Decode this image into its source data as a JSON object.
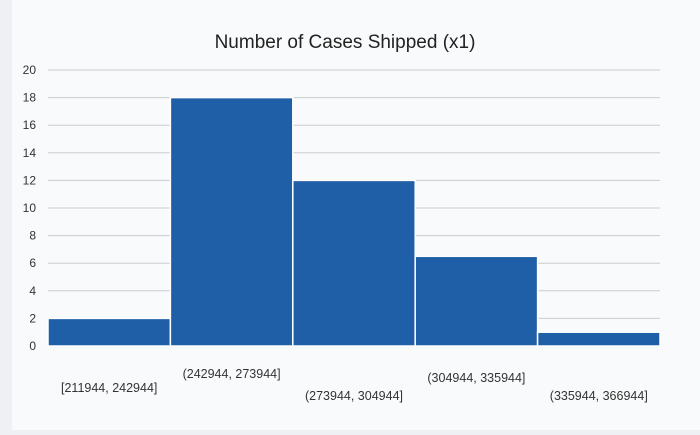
{
  "chart_data": {
    "type": "bar",
    "title": "Number of Cases Shipped (x1)",
    "categories": [
      "[211944, 242944]",
      "(242944, 273944]",
      "(273944, 304944]",
      "(304944, 335944]",
      "(335944, 366944]"
    ],
    "values": [
      2,
      18,
      12,
      6.5,
      1
    ],
    "ylim": [
      0,
      20
    ],
    "yticks": [
      0,
      2,
      4,
      6,
      8,
      10,
      12,
      14,
      16,
      18,
      20
    ],
    "grid": true,
    "legend": "none",
    "bar_color": "#1f5fa8",
    "bar_edge_color": "#ffffff"
  }
}
